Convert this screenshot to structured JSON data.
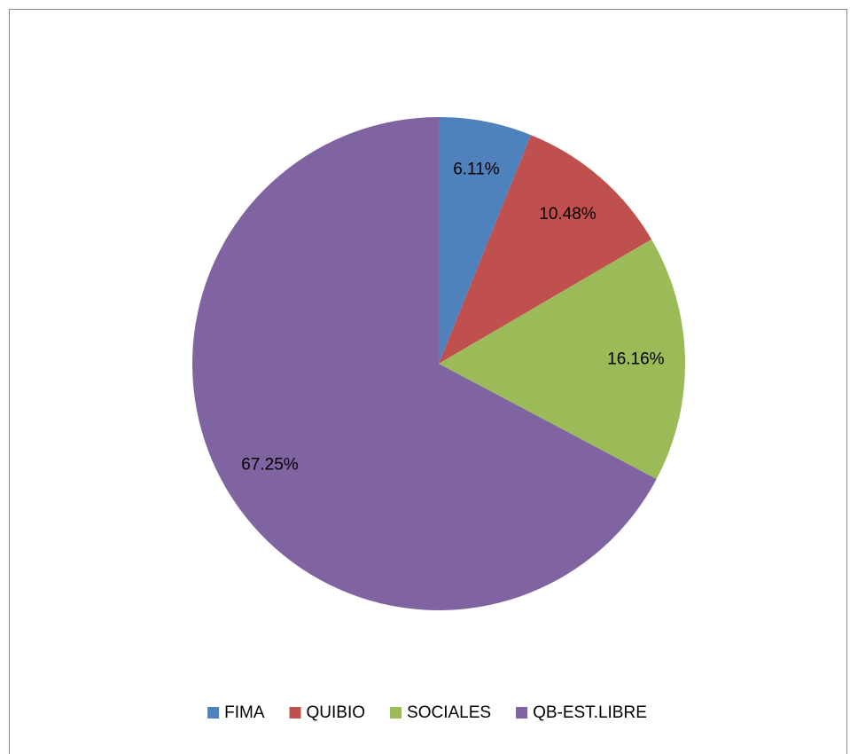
{
  "chart_data": {
    "type": "pie",
    "categories": [
      "FIMA",
      "QUIBIO",
      "SOCIALES",
      "QB-EST.LIBRE"
    ],
    "values": [
      6.11,
      10.48,
      16.16,
      67.25
    ],
    "value_labels": [
      "6.11%",
      "10.48%",
      "16.16%",
      "67.25%"
    ],
    "colors": [
      "#4f81bd",
      "#c0504d",
      "#9bbb59",
      "#8064a2"
    ],
    "legend": "bottom"
  }
}
